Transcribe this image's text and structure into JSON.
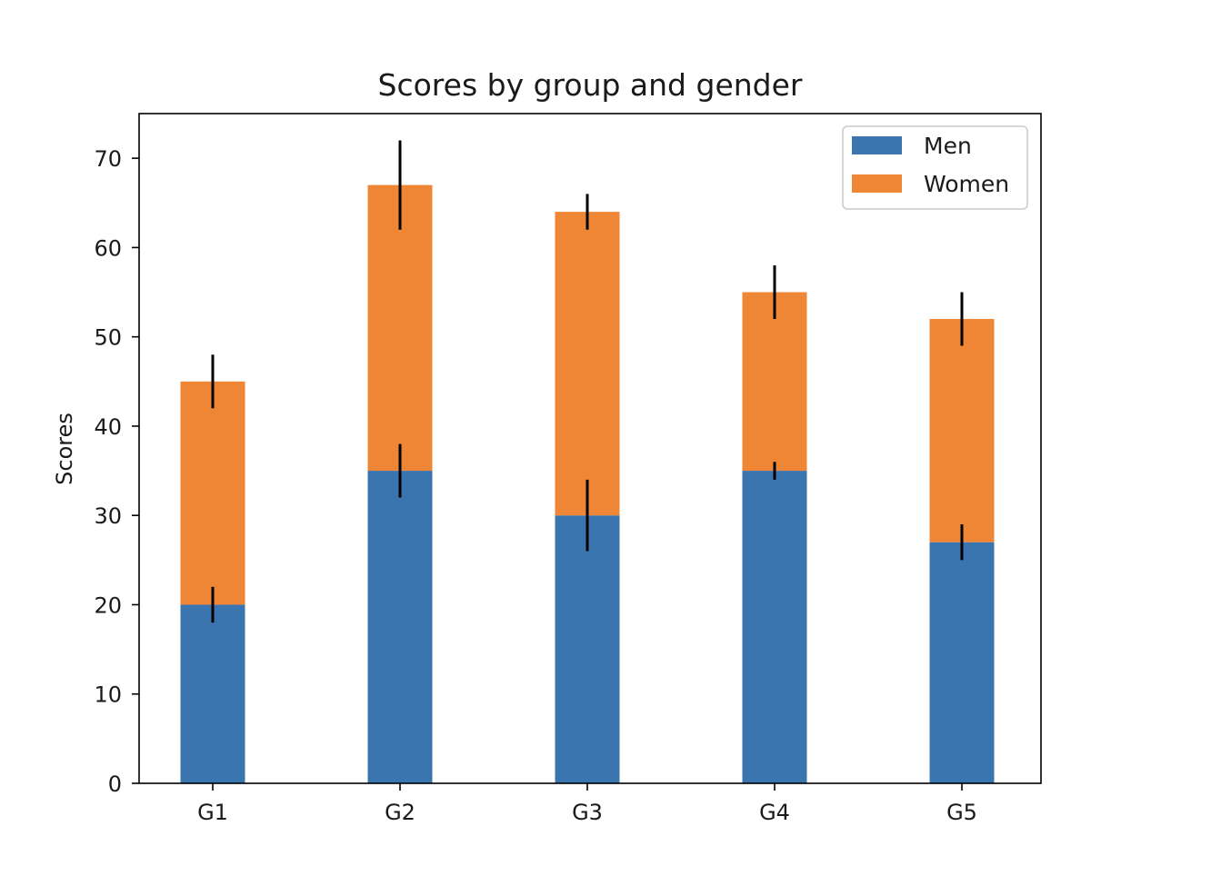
{
  "chart_data": {
    "type": "bar",
    "stacked": true,
    "title": "Scores by group and gender",
    "xlabel": "",
    "ylabel": "Scores",
    "categories": [
      "G1",
      "G2",
      "G3",
      "G4",
      "G5"
    ],
    "series": [
      {
        "name": "Men",
        "values": [
          20,
          35,
          30,
          35,
          27
        ],
        "errors": [
          2,
          3,
          4,
          1,
          2
        ],
        "color": "#3a75b0"
      },
      {
        "name": "Women",
        "values": [
          25,
          32,
          34,
          20,
          25
        ],
        "errors": [
          3,
          5,
          2,
          3,
          3
        ],
        "color": "#ef8636"
      }
    ],
    "ylim": [
      0,
      75
    ],
    "yticks": [
      0,
      10,
      20,
      30,
      40,
      50,
      60,
      70
    ],
    "grid": false,
    "legend_position": "top-right",
    "error_bar_color": "#000000"
  }
}
